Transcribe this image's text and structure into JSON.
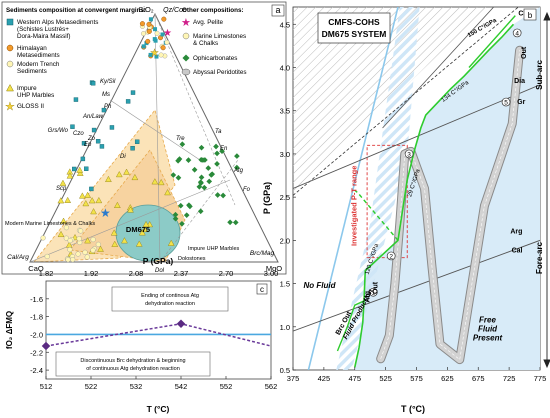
{
  "chart_data": [
    {
      "panel": "a",
      "type": "ternary",
      "apices": {
        "top": "SiO₂",
        "left": "CaO",
        "right": "MgO"
      },
      "apex_labels": [
        "Qz/Coe",
        "Cal/Arg",
        "Brc/Mag"
      ],
      "mineral_labels": [
        "Ky/Sil",
        "Ph",
        "Zo",
        "Di",
        "Tre",
        "Ta",
        "En",
        "Fo",
        "Atg",
        "Ep",
        "Czo",
        "Grs/Wo",
        "Ms",
        "An/Law",
        "Dol",
        "Scp"
      ],
      "legend_title": "Sediments composition at convergent margins:",
      "legend_left": [
        "Western Alps Metasediments (Schistes Lustrés+ Dora-Maira Massif)",
        "Himalayan Metasediments",
        "Modern Trench Sediments",
        "Impure UHP Marbles",
        "GLOSS II"
      ],
      "legend_right_title": "Other compositions:",
      "legend_right": [
        "Avg. Pelite",
        "Marine Limestones & Chalks",
        "Ophicarbonates",
        "Abyssal Peridotites"
      ],
      "annotations": [
        "Modern Marine Limestones & Chalks",
        "DM675",
        "Impure UHP Marbles",
        "Dolostones"
      ]
    },
    {
      "panel": "b",
      "type": "line",
      "title": "CMFS-COHS",
      "subtitle": "DM675 SYSTEM",
      "xlabel": "T (°C)",
      "ylabel": "P (GPa)",
      "xlim": [
        375,
        775
      ],
      "ylim": [
        0.5,
        4.7
      ],
      "xticks": [
        375,
        425,
        475,
        525,
        575,
        625,
        675,
        725,
        775
      ],
      "yticks": [
        0.5,
        1.0,
        1.5,
        2.0,
        2.5,
        3.0,
        3.5,
        4.0,
        4.5
      ],
      "gradient_labels": [
        "150 C°/GPa",
        "134 C°/GPa",
        "120 C°/GPa",
        "29 C°/GPa"
      ],
      "reactions": [
        "Chu",
        "Out",
        "Dia",
        "Gr",
        "Arg",
        "Cal",
        "Brc Out",
        "Atg",
        "Out"
      ],
      "points": [
        "1",
        "2",
        "3",
        "4",
        "5"
      ],
      "annotations": [
        "Investigated P-T range",
        "No Fluid",
        "Fluid Production",
        "Free Fluid Present"
      ],
      "side_labels": [
        "Sub-arc",
        "Fore-arc"
      ],
      "path": {
        "T": [
          517,
          531,
          540,
          548,
          556,
          566,
          588,
          600,
          613,
          645,
          685,
          730,
          742
        ],
        "P": [
          0.63,
          0.9,
          1.5,
          2.2,
          3.0,
          3.03,
          2.6,
          1.7,
          0.8,
          0.62,
          2.4,
          3.35,
          4.2
        ]
      },
      "atg_out": {
        "T": [
          475,
          482,
          488,
          490,
          492,
          545,
          560,
          572,
          582,
          590,
          610,
          630,
          652,
          672,
          692,
          713,
          732
        ],
        "P": [
          0.53,
          0.76,
          1.05,
          1.3,
          1.65,
          2.0,
          2.7,
          3.05,
          3.3,
          3.45,
          3.6,
          3.75,
          3.9,
          4.05,
          4.2,
          4.35,
          4.5
        ]
      },
      "brc_out": {
        "T": [
          447,
          463,
          475,
          490
        ],
        "P": [
          0.72,
          1.0,
          1.25,
          1.3
        ]
      }
    },
    {
      "panel": "c",
      "type": "line",
      "xlabel": "T (°C)",
      "ylabel": "fO₂ ΔFMQ",
      "top_axis_label": "P (GPa)",
      "xlim": [
        512,
        562
      ],
      "ylim": [
        -2.5,
        -1.4
      ],
      "xticks": [
        512,
        522,
        532,
        542,
        552,
        562
      ],
      "yticks": [
        -1.6,
        -1.8,
        -2.0,
        -2.2,
        -2.4
      ],
      "top_ticks": [
        "1.82",
        "1.92",
        "2.08",
        "2.37",
        "2.70",
        "3.00"
      ],
      "reference_y": -2.0,
      "x": [
        512,
        542,
        562
      ],
      "y": [
        -2.13,
        -1.88,
        -2.13
      ],
      "annotations": [
        "Ending of continous Atg dehydration reaction",
        "Discontinuous Brc dehydration & beginning of continuous Atg dehydration reaction"
      ]
    }
  ]
}
